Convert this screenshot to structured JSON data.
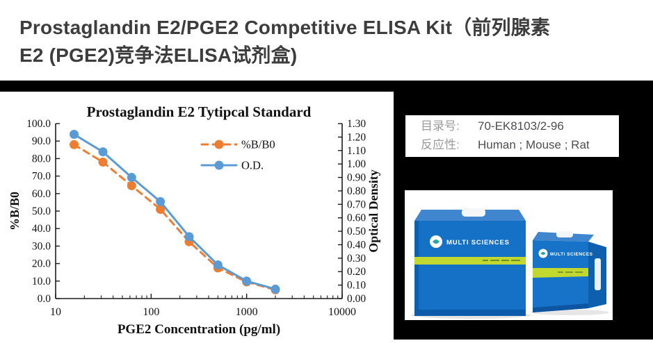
{
  "header": {
    "title_line1": "Prostaglandin E2/PGE2 Competitive ELISA Kit（前列腺素",
    "title_line2": "E2 (PGE2)竞争法ELISA试剂盒)"
  },
  "chart_data": {
    "type": "line",
    "title": "Prostaglandin E2 Tytipcal Standard",
    "xlabel": "PGE2 Concentration (pg/ml)",
    "ylabel_left": "%B/B0",
    "ylabel_right": "Optical Density",
    "x_scale": "log",
    "xlim": [
      10,
      10000
    ],
    "x_tick_labels": [
      "10",
      "100",
      "1000",
      "10000"
    ],
    "x": [
      15.6,
      31.25,
      62.5,
      125,
      250,
      500,
      1000,
      2000
    ],
    "series": [
      {
        "name": "%B/B0",
        "axis": "left",
        "color": "#ED7D31",
        "style": "dashed",
        "marker": "circle",
        "values": [
          88,
          78,
          64.5,
          51,
          32.5,
          17.5,
          9.5,
          5
        ]
      },
      {
        "name": "O.D.",
        "axis": "right",
        "color": "#5B9BD5",
        "style": "solid",
        "marker": "circle",
        "values": [
          1.22,
          1.09,
          0.9,
          0.72,
          0.46,
          0.25,
          0.13,
          0.07
        ]
      }
    ],
    "ylim_left": [
      0,
      100
    ],
    "yticks_left": [
      "0.0",
      "10.0",
      "20.0",
      "30.0",
      "40.0",
      "50.0",
      "60.0",
      "70.0",
      "80.0",
      "90.0",
      "100.0"
    ],
    "ylim_right": [
      0,
      1.3
    ],
    "yticks_right": [
      "0.00",
      "0.10",
      "0.20",
      "0.30",
      "0.40",
      "0.50",
      "0.60",
      "0.70",
      "0.80",
      "0.90",
      "1.00",
      "1.10",
      "1.20",
      "1.30"
    ],
    "grid": false,
    "legend_position": "upper-right-inside",
    "legend": [
      {
        "label": "%B/B0",
        "color": "#ED7D31",
        "style": "dashed"
      },
      {
        "label": "O.D.",
        "color": "#5B9BD5",
        "style": "solid"
      }
    ]
  },
  "info_panel": {
    "rows": [
      {
        "label": "目录号:",
        "value": "70-EK8103/2-96"
      },
      {
        "label": "反应性:",
        "value": "Human ; Mouse ; Rat"
      }
    ]
  },
  "product_photo": {
    "brand": "MULTI SCIENCES",
    "box_color": "#1471c6",
    "stripe_color": "#c3d82e"
  }
}
